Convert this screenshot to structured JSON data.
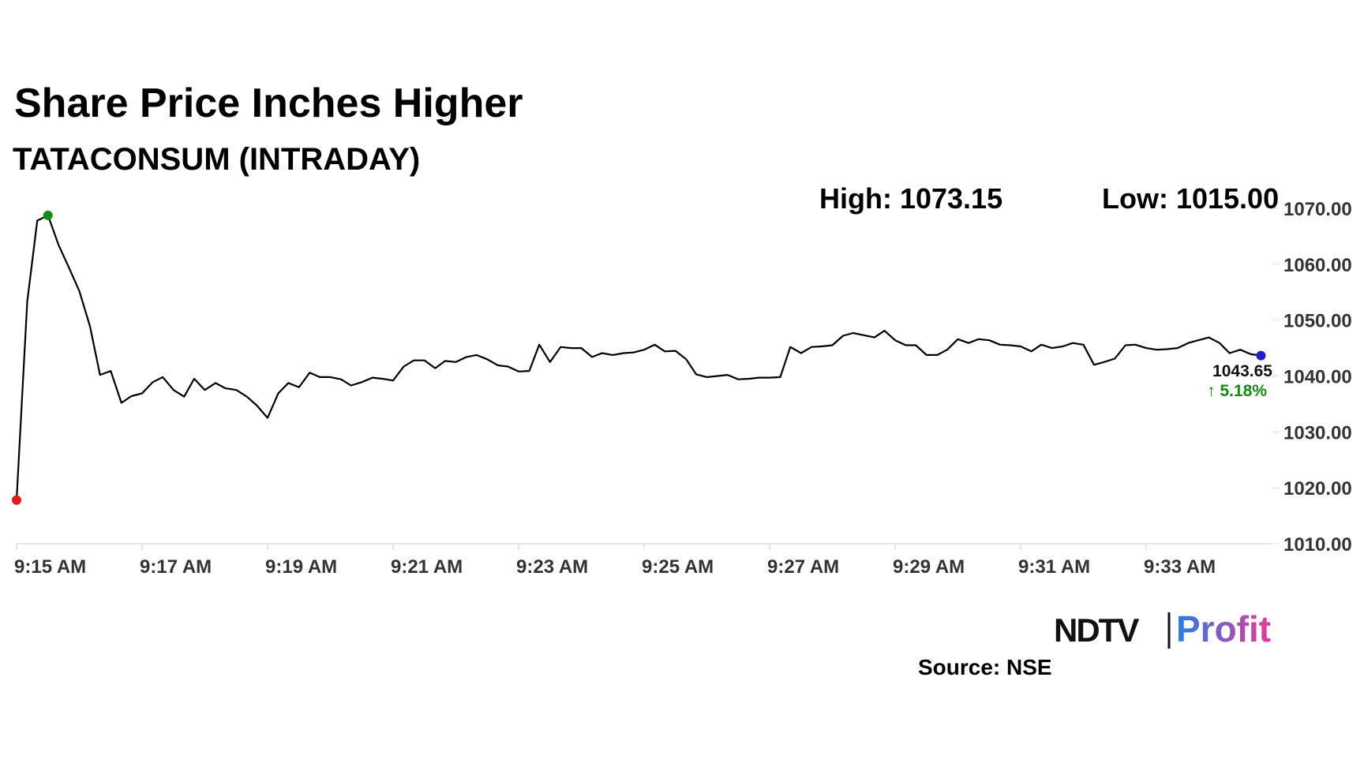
{
  "chart_data": {
    "type": "line",
    "title": "Share Price Inches Higher",
    "subtitle": "TATACONSUM (INTRADAY)",
    "high_label": "High: 1073.15",
    "low_label": "Low: 1015.00",
    "last_label": "1043.65",
    "change_label": "↑ 5.18%",
    "source": "Source: NSE",
    "logo": {
      "left": "NDTV",
      "right": "Profit"
    },
    "xlim": [
      555,
      575
    ],
    "xticks": [
      {
        "value": 555,
        "label": "9:15 AM"
      },
      {
        "value": 557,
        "label": "9:17 AM"
      },
      {
        "value": 559,
        "label": "9:19 AM"
      },
      {
        "value": 561,
        "label": "9:21 AM"
      },
      {
        "value": 563,
        "label": "9:23 AM"
      },
      {
        "value": 565,
        "label": "9:25 AM"
      },
      {
        "value": 567,
        "label": "9:27 AM"
      },
      {
        "value": 569,
        "label": "9:29 AM"
      },
      {
        "value": 571,
        "label": "9:31 AM"
      },
      {
        "value": 573,
        "label": "9:33 AM"
      }
    ],
    "ylim": [
      1010,
      1070
    ],
    "yticks": [
      {
        "value": 1010,
        "label": "1010.00"
      },
      {
        "value": 1020,
        "label": "1020.00"
      },
      {
        "value": 1030,
        "label": "1030.00"
      },
      {
        "value": 1040,
        "label": "1040.00"
      },
      {
        "value": 1050,
        "label": "1050.00"
      },
      {
        "value": 1060,
        "label": "1060.00"
      },
      {
        "value": 1070,
        "label": "1070.00"
      }
    ],
    "x": [
      555,
      555.17,
      555.33,
      555.5,
      555.67,
      555.83,
      556,
      556.17,
      556.33,
      556.5,
      556.67,
      556.83,
      557,
      557.17,
      557.33,
      557.5,
      557.67,
      557.83,
      558,
      558.17,
      558.33,
      558.5,
      558.67,
      558.83,
      559,
      559.17,
      559.33,
      559.5,
      559.67,
      559.83,
      560,
      560.17,
      560.33,
      560.5,
      560.67,
      560.83,
      561,
      561.17,
      561.33,
      561.5,
      561.67,
      561.83,
      562,
      562.17,
      562.33,
      562.5,
      562.67,
      562.83,
      563,
      563.17,
      563.33,
      563.5,
      563.67,
      563.83,
      564,
      564.17,
      564.33,
      564.5,
      564.67,
      564.83,
      565,
      565.17,
      565.33,
      565.5,
      565.67,
      565.83,
      566,
      566.17,
      566.33,
      566.5,
      566.67,
      566.83,
      567,
      567.17,
      567.33,
      567.5,
      567.67,
      567.83,
      568,
      568.17,
      568.33,
      568.5,
      568.67,
      568.83,
      569,
      569.17,
      569.33,
      569.5,
      569.67,
      569.83,
      570,
      570.17,
      570.33,
      570.5,
      570.67,
      570.83,
      571,
      571.17,
      571.33,
      571.5,
      571.67,
      571.83,
      572,
      572.17,
      572.33,
      572.5,
      572.67,
      572.83,
      573,
      573.17,
      573.33,
      573.5,
      573.67,
      573.83,
      574,
      574.17,
      574.33,
      574.5,
      574.67,
      574.83
    ],
    "series": [
      {
        "name": "TATACONSUM",
        "color": "#000000",
        "values": [
          1017.8,
          1053.3,
          1067.8,
          1068.75,
          1063.4,
          1059.5,
          1055.2,
          1048.9,
          1040.2,
          1040.9,
          1035.2,
          1036.4,
          1036.9,
          1038.9,
          1039.8,
          1037.5,
          1036.3,
          1039.5,
          1037.5,
          1038.75,
          1037.8,
          1037.5,
          1036.3,
          1034.7,
          1032.5,
          1036.9,
          1038.75,
          1038.0,
          1040.6,
          1039.8,
          1039.8,
          1039.4,
          1038.3,
          1038.9,
          1039.7,
          1039.5,
          1039.2,
          1041.7,
          1042.8,
          1042.8,
          1041.4,
          1042.7,
          1042.5,
          1043.4,
          1043.75,
          1043.0,
          1041.9,
          1041.7,
          1040.8,
          1040.9,
          1045.6,
          1042.5,
          1045.2,
          1045.0,
          1045.0,
          1043.4,
          1044.1,
          1043.75,
          1044.1,
          1044.2,
          1044.7,
          1045.6,
          1044.4,
          1044.5,
          1043.0,
          1040.3,
          1039.8,
          1040.0,
          1040.2,
          1039.4,
          1039.5,
          1039.7,
          1039.7,
          1039.8,
          1045.2,
          1044.1,
          1045.2,
          1045.3,
          1045.5,
          1047.2,
          1047.7,
          1047.3,
          1046.9,
          1048.1,
          1046.4,
          1045.5,
          1045.5,
          1043.75,
          1043.75,
          1044.7,
          1046.6,
          1045.9,
          1046.6,
          1046.4,
          1045.6,
          1045.5,
          1045.3,
          1044.4,
          1045.6,
          1045.0,
          1045.3,
          1045.9,
          1045.6,
          1042.0,
          1042.5,
          1043.1,
          1045.5,
          1045.6,
          1045.0,
          1044.7,
          1044.8,
          1045.0,
          1045.9,
          1046.4,
          1046.9,
          1045.9,
          1044.1,
          1044.7,
          1043.9,
          1043.65
        ]
      }
    ],
    "start_color": "#e01b1b",
    "high_color": "#168a16",
    "end_color": "#1f1fcc",
    "change_color": "#138a13",
    "grid": false
  }
}
